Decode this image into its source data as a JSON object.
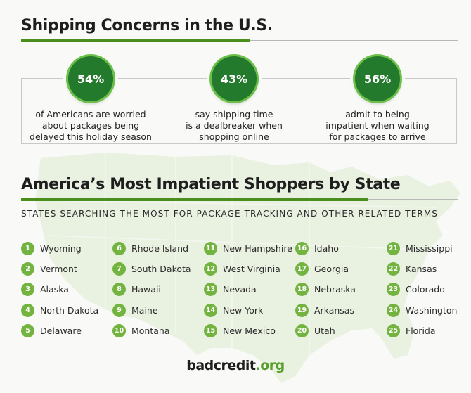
{
  "header": {
    "title": "Shipping Concerns in the U.S."
  },
  "stats": [
    {
      "value": "54%",
      "text": "of Americans are worried\nabout packages being\ndelayed this holiday season"
    },
    {
      "value": "43%",
      "text": "say shipping time\nis a dealbreaker when\nshopping online"
    },
    {
      "value": "56%",
      "text": "admit to being\nimpatient when waiting\nfor packages to arrive"
    }
  ],
  "section2": {
    "title": "America’s Most Impatient Shoppers by State",
    "subtitle": "STATES SEARCHING THE MOST FOR PACKAGE TRACKING AND OTHER RELATED TERMS"
  },
  "states": [
    {
      "rank": "1",
      "name": "Wyoming"
    },
    {
      "rank": "2",
      "name": "Vermont"
    },
    {
      "rank": "3",
      "name": "Alaska"
    },
    {
      "rank": "4",
      "name": "North Dakota"
    },
    {
      "rank": "5",
      "name": "Delaware"
    },
    {
      "rank": "6",
      "name": "Rhode Island"
    },
    {
      "rank": "7",
      "name": "South Dakota"
    },
    {
      "rank": "8",
      "name": "Hawaii"
    },
    {
      "rank": "9",
      "name": "Maine"
    },
    {
      "rank": "10",
      "name": "Montana"
    },
    {
      "rank": "11",
      "name": "New Hampshire"
    },
    {
      "rank": "12",
      "name": "West Virginia"
    },
    {
      "rank": "13",
      "name": "Nevada"
    },
    {
      "rank": "14",
      "name": "New York"
    },
    {
      "rank": "15",
      "name": "New Mexico"
    },
    {
      "rank": "16",
      "name": "Idaho"
    },
    {
      "rank": "17",
      "name": "Georgia"
    },
    {
      "rank": "18",
      "name": "Nebraska"
    },
    {
      "rank": "19",
      "name": "Arkansas"
    },
    {
      "rank": "20",
      "name": "Utah"
    },
    {
      "rank": "21",
      "name": "Mississippi"
    },
    {
      "rank": "22",
      "name": "Kansas"
    },
    {
      "rank": "23",
      "name": "Colorado"
    },
    {
      "rank": "24",
      "name": "Washington"
    },
    {
      "rank": "25",
      "name": "Florida"
    }
  ],
  "logo": {
    "part1": "badcredit",
    "part2": ".org"
  },
  "colors": {
    "accent_green": "#4a8f1e",
    "circle_green": "#247a2c",
    "badge_green": "#73b33f",
    "logo_green": "#5aa02c"
  }
}
